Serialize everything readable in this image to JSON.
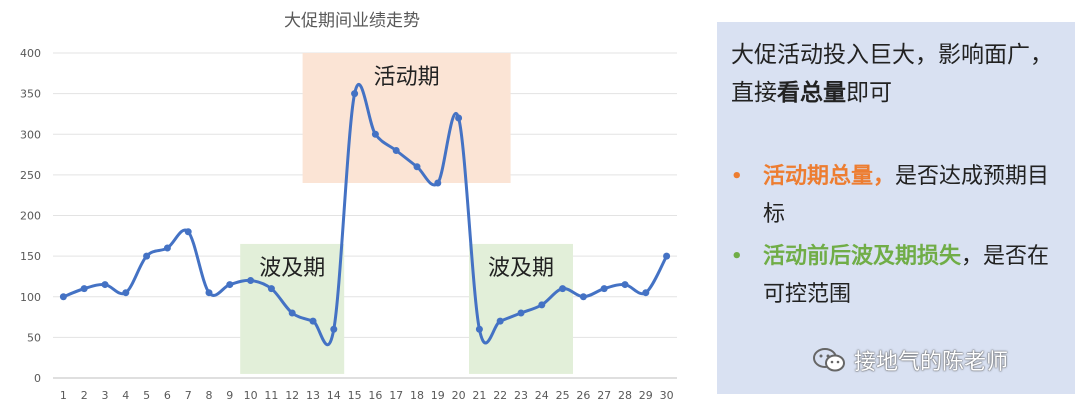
{
  "chart_data": {
    "type": "line",
    "title": "大促期间业绩走势",
    "xlabel": "",
    "ylabel": "",
    "x": [
      1,
      2,
      3,
      4,
      5,
      6,
      7,
      8,
      9,
      10,
      11,
      12,
      13,
      14,
      15,
      16,
      17,
      18,
      19,
      20,
      21,
      22,
      23,
      24,
      25,
      26,
      27,
      28,
      29,
      30
    ],
    "series": [
      {
        "values": [
          100,
          110,
          115,
          105,
          150,
          160,
          180,
          105,
          115,
          120,
          110,
          80,
          70,
          60,
          350,
          300,
          280,
          260,
          240,
          320,
          60,
          70,
          80,
          90,
          110,
          100,
          110,
          115,
          105,
          150
        ]
      }
    ],
    "ylim": [
      0,
      400
    ],
    "yticks": [
      0,
      50,
      100,
      150,
      200,
      250,
      300,
      350,
      400
    ],
    "grid": true,
    "line_color": "#4472c4",
    "regions": [
      {
        "label": "波及期",
        "x_from": 10,
        "x_to": 14,
        "y_from": 5,
        "y_to": 165,
        "color": "#e2efd9"
      },
      {
        "label": "活动期",
        "x_from": 13,
        "x_to": 22,
        "y_from": 240,
        "y_to": 400,
        "color": "#fbe4d5"
      },
      {
        "label": "波及期",
        "x_from": 21,
        "x_to": 25,
        "y_from": 5,
        "y_to": 165,
        "color": "#e2efd9"
      }
    ]
  },
  "panel": {
    "intro_pre": "大促活动投入巨大，影响面广，直接",
    "intro_strong": "看总量",
    "intro_post": "即可",
    "bullets": [
      {
        "dot": "•",
        "strong": "活动期总量，",
        "rest": "是否达成预期目标",
        "color": "#ed7d31"
      },
      {
        "dot": "•",
        "strong": "活动前后波及期损失",
        "rest": "，是否在可控范围",
        "color": "#70ad47"
      }
    ]
  },
  "watermark": {
    "text": "接地气的陈老师"
  }
}
